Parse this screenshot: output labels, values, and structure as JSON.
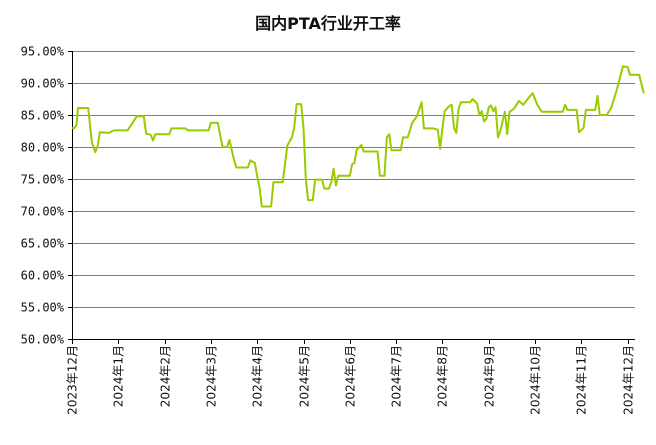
{
  "chart_data": {
    "type": "line",
    "title": "国内PTA行业开工率",
    "xlabel": "",
    "ylabel": "",
    "ylim": [
      0.5,
      0.95
    ],
    "ytick_step": 0.05,
    "grid": "horizontal",
    "legend": "none",
    "colors": {
      "line": "#99cc00",
      "grid": "#808080",
      "axis": "#000000"
    },
    "x_ticks": [
      "2023年12月",
      "2024年1月",
      "2024年2月",
      "2024年3月",
      "2024年4月",
      "2024年5月",
      "2024年6月",
      "2024年7月",
      "2024年8月",
      "2024年9月",
      "2024年10月",
      "2024年11月",
      "2024年12月"
    ],
    "series": [
      {
        "values": [
          [
            0.0,
            0.83
          ],
          [
            0.05,
            0.829
          ],
          [
            0.1,
            0.835
          ],
          [
            0.13,
            0.861
          ],
          [
            0.35,
            0.861
          ],
          [
            0.43,
            0.807
          ],
          [
            0.5,
            0.792
          ],
          [
            0.55,
            0.8
          ],
          [
            0.6,
            0.823
          ],
          [
            0.8,
            0.822
          ],
          [
            0.9,
            0.826
          ],
          [
            1.2,
            0.826
          ],
          [
            1.4,
            0.848
          ],
          [
            1.55,
            0.848
          ],
          [
            1.6,
            0.821
          ],
          [
            1.7,
            0.819
          ],
          [
            1.75,
            0.81
          ],
          [
            1.8,
            0.82
          ],
          [
            2.1,
            0.82
          ],
          [
            2.15,
            0.829
          ],
          [
            2.45,
            0.829
          ],
          [
            2.5,
            0.826
          ],
          [
            2.95,
            0.826
          ],
          [
            3.0,
            0.838
          ],
          [
            3.15,
            0.838
          ],
          [
            3.25,
            0.8
          ],
          [
            3.35,
            0.8
          ],
          [
            3.4,
            0.811
          ],
          [
            3.5,
            0.78
          ],
          [
            3.55,
            0.768
          ],
          [
            3.8,
            0.768
          ],
          [
            3.85,
            0.779
          ],
          [
            3.95,
            0.775
          ],
          [
            4.0,
            0.754
          ],
          [
            4.05,
            0.737
          ],
          [
            4.1,
            0.707
          ],
          [
            4.3,
            0.707
          ],
          [
            4.35,
            0.745
          ],
          [
            4.55,
            0.745
          ],
          [
            4.65,
            0.802
          ],
          [
            4.75,
            0.815
          ],
          [
            4.8,
            0.83
          ],
          [
            4.85,
            0.867
          ],
          [
            4.95,
            0.867
          ],
          [
            5.0,
            0.83
          ],
          [
            5.05,
            0.75
          ],
          [
            5.1,
            0.717
          ],
          [
            5.2,
            0.717
          ],
          [
            5.25,
            0.749
          ],
          [
            5.4,
            0.749
          ],
          [
            5.45,
            0.735
          ],
          [
            5.55,
            0.735
          ],
          [
            5.6,
            0.745
          ],
          [
            5.65,
            0.766
          ],
          [
            5.7,
            0.74
          ],
          [
            5.75,
            0.755
          ],
          [
            6.0,
            0.755
          ],
          [
            6.05,
            0.773
          ],
          [
            6.1,
            0.775
          ],
          [
            6.15,
            0.796
          ],
          [
            6.25,
            0.803
          ],
          [
            6.3,
            0.793
          ],
          [
            6.6,
            0.793
          ],
          [
            6.65,
            0.755
          ],
          [
            6.75,
            0.755
          ],
          [
            6.8,
            0.815
          ],
          [
            6.85,
            0.82
          ],
          [
            6.9,
            0.795
          ],
          [
            7.1,
            0.795
          ],
          [
            7.15,
            0.815
          ],
          [
            7.25,
            0.815
          ],
          [
            7.35,
            0.838
          ],
          [
            7.45,
            0.848
          ],
          [
            7.55,
            0.87
          ],
          [
            7.6,
            0.829
          ],
          [
            7.8,
            0.829
          ],
          [
            7.9,
            0.827
          ],
          [
            7.95,
            0.797
          ],
          [
            8.0,
            0.829
          ],
          [
            8.05,
            0.856
          ],
          [
            8.15,
            0.864
          ],
          [
            8.2,
            0.866
          ],
          [
            8.25,
            0.83
          ],
          [
            8.3,
            0.822
          ],
          [
            8.35,
            0.86
          ],
          [
            8.4,
            0.87
          ],
          [
            8.6,
            0.87
          ],
          [
            8.65,
            0.875
          ],
          [
            8.75,
            0.868
          ],
          [
            8.8,
            0.85
          ],
          [
            8.85,
            0.856
          ],
          [
            8.9,
            0.84
          ],
          [
            8.95,
            0.844
          ],
          [
            9.0,
            0.862
          ],
          [
            9.05,
            0.865
          ],
          [
            9.1,
            0.856
          ],
          [
            9.15,
            0.862
          ],
          [
            9.2,
            0.815
          ],
          [
            9.25,
            0.825
          ],
          [
            9.3,
            0.84
          ],
          [
            9.35,
            0.855
          ],
          [
            9.4,
            0.82
          ],
          [
            9.45,
            0.855
          ],
          [
            9.55,
            0.86
          ],
          [
            9.65,
            0.872
          ],
          [
            9.75,
            0.866
          ],
          [
            9.85,
            0.876
          ],
          [
            9.95,
            0.884
          ],
          [
            10.05,
            0.866
          ],
          [
            10.15,
            0.855
          ],
          [
            10.6,
            0.855
          ],
          [
            10.65,
            0.866
          ],
          [
            10.7,
            0.858
          ],
          [
            10.9,
            0.858
          ],
          [
            10.95,
            0.823
          ],
          [
            11.05,
            0.83
          ],
          [
            11.1,
            0.858
          ],
          [
            11.3,
            0.858
          ],
          [
            11.35,
            0.88
          ],
          [
            11.4,
            0.85
          ],
          [
            11.55,
            0.85
          ],
          [
            11.65,
            0.862
          ],
          [
            11.75,
            0.885
          ],
          [
            11.85,
            0.913
          ],
          [
            11.9,
            0.926
          ],
          [
            12.0,
            0.925
          ],
          [
            12.05,
            0.913
          ],
          [
            12.25,
            0.913
          ],
          [
            12.3,
            0.898
          ],
          [
            12.35,
            0.884
          ]
        ]
      }
    ]
  }
}
